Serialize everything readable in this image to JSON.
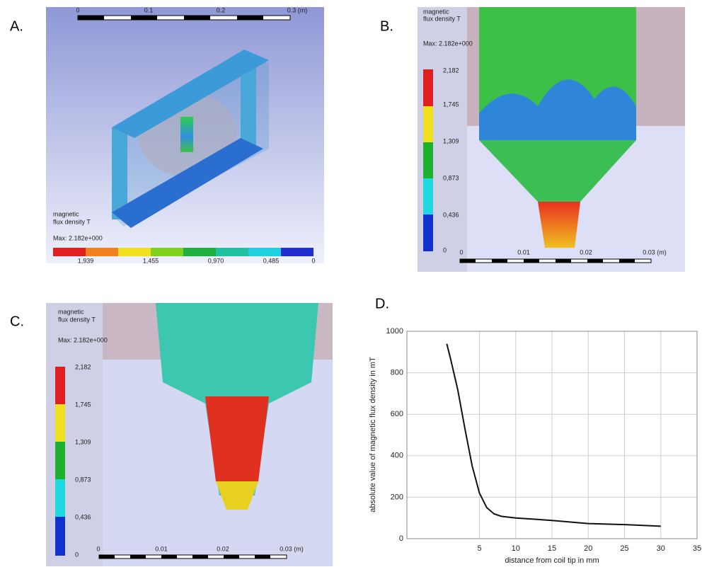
{
  "panels": {
    "a": {
      "label": "A.",
      "scale": [
        "0",
        "0.1",
        "0.2",
        "0.3 (m)"
      ],
      "legend_title": [
        "magnetic",
        "flux density T"
      ],
      "max": "Max: 2.182e+000",
      "colorbar": [
        "1,939",
        "1,455",
        "0,970",
        "0,485",
        "0"
      ]
    },
    "b": {
      "label": "B.",
      "legend_title": [
        "magnetic",
        "flux density T"
      ],
      "max": "Max: 2.182e+000",
      "colorbar": [
        "2,182",
        "1,745",
        "1,309",
        "0,873",
        "0,436",
        "0"
      ],
      "scale": [
        "0",
        "0.01",
        "0.02",
        "0.03 (m)"
      ]
    },
    "c": {
      "label": "C.",
      "legend_title": [
        "magnetic",
        "flux density T"
      ],
      "max": "Max: 2.182e+000",
      "colorbar": [
        "2,182",
        "1,745",
        "1,309",
        "0,873",
        "0,436",
        "0"
      ],
      "scale": [
        "0",
        "0.01",
        "0.02",
        "0.03 (m)"
      ]
    },
    "d": {
      "label": "D."
    }
  },
  "chart_data": {
    "type": "line",
    "x_label": "distance from coil tip in mm",
    "y_label": "absolute value of magnetic flux density in mT",
    "x": [
      0.5,
      1,
      2,
      3,
      4,
      5,
      6,
      7,
      8,
      10,
      15,
      20,
      25,
      30
    ],
    "series": [
      {
        "color": "#111111",
        "values": [
          940,
          870,
          720,
          530,
          350,
          220,
          150,
          120,
          108,
          100,
          88,
          73,
          68,
          60
        ]
      }
    ],
    "xlim": [
      -5,
      35
    ],
    "xticks": [
      5,
      10,
      15,
      20,
      25,
      30,
      35
    ],
    "ylim": [
      0,
      1000
    ],
    "yticks": [
      0,
      200,
      400,
      600,
      800,
      1000
    ],
    "grid": true
  }
}
